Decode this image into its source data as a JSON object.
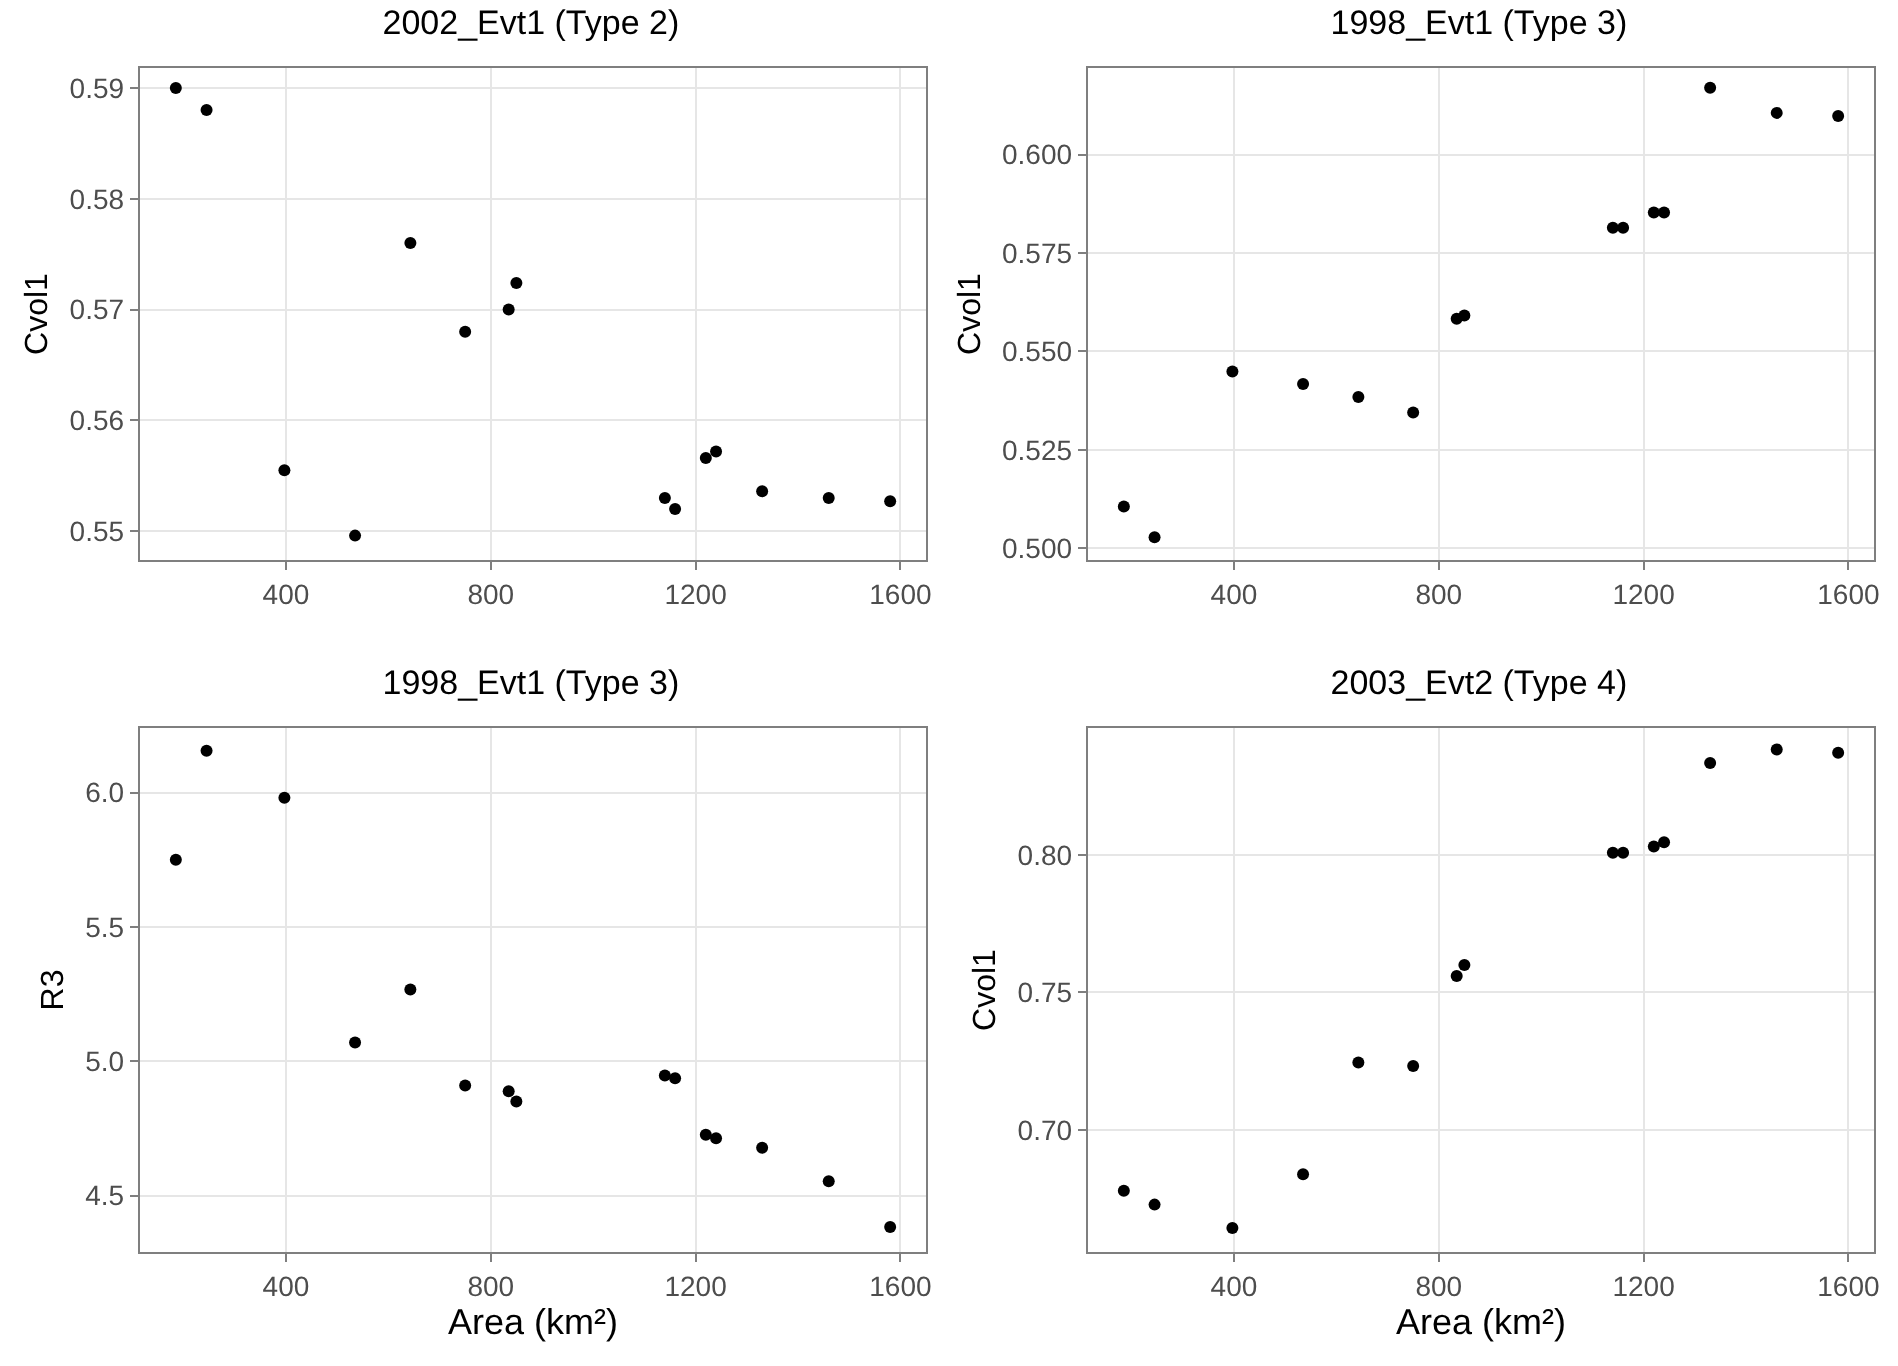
{
  "chart_data": [
    {
      "type": "scatter",
      "title": "2002_Evt1 (Type 2)",
      "ylabel": "Cvol1",
      "marker": "circle",
      "grid": true,
      "x": [
        185,
        245,
        397,
        535,
        643,
        750,
        835,
        850,
        1140,
        1160,
        1220,
        1240,
        1330,
        1460,
        1580
      ],
      "series": [
        {
          "color": "#000000",
          "values": [
            0.59,
            0.588,
            0.5555,
            0.5496,
            0.576,
            0.568,
            0.57,
            0.5724,
            0.553,
            0.552,
            0.5566,
            0.5572,
            0.5536,
            0.553,
            0.5527
          ]
        }
      ],
      "xlim": [
        115,
        1650
      ],
      "xticks": [
        400,
        800,
        1200,
        1600
      ],
      "ylim": [
        0.5474,
        0.5918
      ],
      "yticks": [
        0.55,
        0.56,
        0.57,
        0.58,
        0.59
      ]
    },
    {
      "type": "scatter",
      "title": "1998_Evt1 (Type 3)",
      "ylabel": "Cvol1",
      "marker": "circle",
      "grid": true,
      "x": [
        185,
        245,
        397,
        535,
        643,
        750,
        835,
        850,
        1140,
        1160,
        1220,
        1240,
        1330,
        1460,
        1580
      ],
      "series": [
        {
          "color": "#000000",
          "values": [
            0.5106,
            0.5028,
            0.5449,
            0.5417,
            0.5384,
            0.5345,
            0.5583,
            0.5591,
            0.5814,
            0.5814,
            0.5853,
            0.5853,
            0.617,
            0.6106,
            0.6098
          ]
        }
      ],
      "xlim": [
        115,
        1650
      ],
      "xticks": [
        400,
        800,
        1200,
        1600
      ],
      "ylim": [
        0.497,
        0.622
      ],
      "yticks": [
        {
          "value": 0.5,
          "label": "0.500"
        },
        0.525,
        {
          "value": 0.55,
          "label": "0.550"
        },
        0.575,
        {
          "value": 0.6,
          "label": "0.600"
        }
      ]
    },
    {
      "type": "scatter",
      "title": "1998_Evt1 (Type 3)",
      "xlabel": "Area (km²)",
      "ylabel": "R3",
      "marker": "circle",
      "grid": true,
      "x": [
        185,
        245,
        397,
        535,
        643,
        750,
        835,
        850,
        1140,
        1160,
        1220,
        1240,
        1330,
        1460,
        1580
      ],
      "series": [
        {
          "color": "#000000",
          "values": [
            5.75,
            6.155,
            5.98,
            5.07,
            5.267,
            4.91,
            4.888,
            4.85,
            4.947,
            4.937,
            4.726,
            4.713,
            4.678,
            4.553,
            4.383
          ]
        }
      ],
      "xlim": [
        115,
        1650
      ],
      "xticks": [
        400,
        800,
        1200,
        1600
      ],
      "ylim": [
        4.29,
        6.24
      ],
      "yticks": [
        {
          "value": 4.5,
          "label": "4.5"
        },
        {
          "value": 5,
          "label": "5.0"
        },
        {
          "value": 5.5,
          "label": "5.5"
        },
        {
          "value": 6,
          "label": "6.0"
        }
      ]
    },
    {
      "type": "scatter",
      "title": "2003_Evt2 (Type 4)",
      "xlabel": "Area (km²)",
      "ylabel": "Cvol1",
      "marker": "circle",
      "grid": true,
      "x": [
        185,
        245,
        397,
        535,
        643,
        750,
        835,
        850,
        1140,
        1160,
        1220,
        1240,
        1330,
        1460,
        1580
      ],
      "series": [
        {
          "color": "#000000",
          "values": [
            0.678,
            0.673,
            0.6645,
            0.684,
            0.7246,
            0.7233,
            0.756,
            0.76,
            0.8007,
            0.8007,
            0.803,
            0.8045,
            0.8333,
            0.8382,
            0.837
          ]
        }
      ],
      "xlim": [
        115,
        1650
      ],
      "xticks": [
        400,
        800,
        1200,
        1600
      ],
      "ylim": [
        0.6558,
        0.846
      ],
      "yticks": [
        {
          "value": 0.7,
          "label": "0.70"
        },
        0.75,
        {
          "value": 0.8,
          "label": "0.80"
        }
      ]
    }
  ]
}
